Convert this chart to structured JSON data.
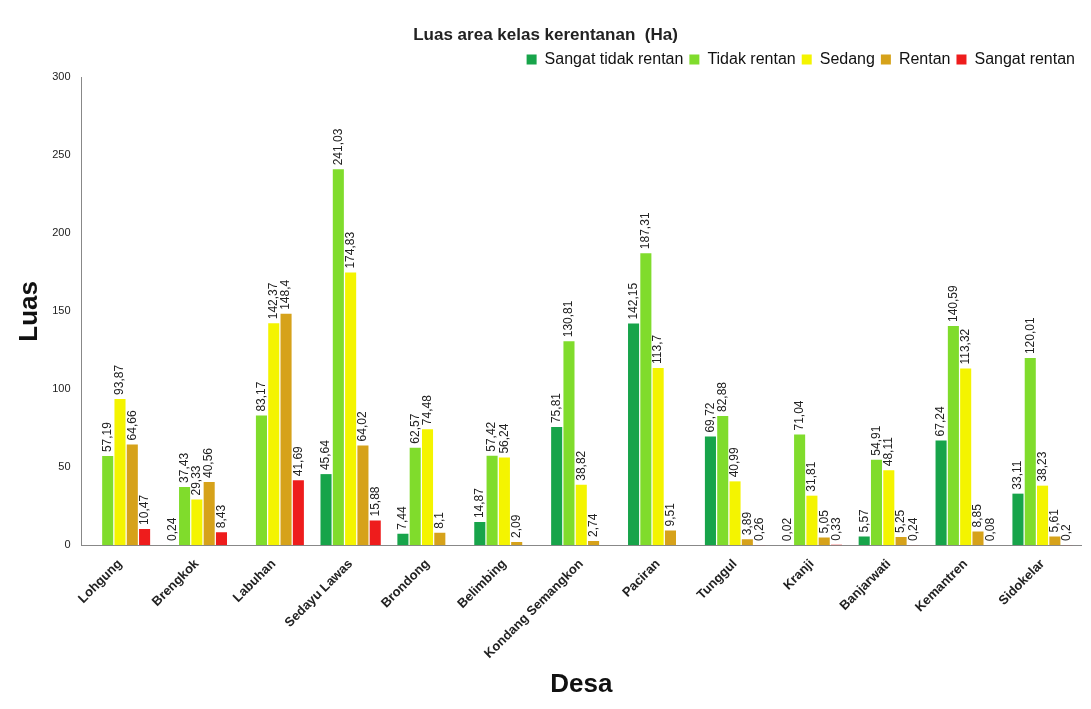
{
  "chart_data": {
    "type": "bar",
    "title": "Luas area kelas kerentanan  (Ha)",
    "xlabel": "Desa",
    "ylabel": "Luas",
    "categories": [
      "Lohgung",
      "Brengkok",
      "Labuhan",
      "Sedayu Lawas",
      "Brondong",
      "Belimbing",
      "Kondang Semangkon",
      "Paciran",
      "Tunggul",
      "Kranji",
      "Banjarwati",
      "Kemantren",
      "Sidokelar"
    ],
    "series": [
      {
        "name": "Sangat tidak rentan",
        "color": "#17a44a",
        "values": [
          null,
          0.24,
          null,
          45.64,
          7.44,
          14.87,
          75.81,
          142.15,
          69.72,
          0.02,
          5.57,
          67.24,
          33.11
        ],
        "value_labels": [
          null,
          "0,24",
          null,
          "45,64",
          "7,44",
          "14,87",
          "75,81",
          "142,15",
          "69,72",
          "0,02",
          "5,57",
          "67,24",
          "33,11"
        ]
      },
      {
        "name": "Tidak rentan",
        "color": "#80dc2c",
        "values": [
          57.19,
          37.43,
          83.17,
          241.03,
          62.57,
          57.42,
          130.81,
          187.31,
          82.88,
          71.04,
          54.91,
          140.59,
          120.01
        ],
        "value_labels": [
          "57,19",
          "37,43",
          "83,17",
          "241,03",
          "62,57",
          "57,42",
          "130,81",
          "187,31",
          "82,88",
          "71,04",
          "54,91",
          "140,59",
          "120,01"
        ]
      },
      {
        "name": "Sedang",
        "color": "#f4f400",
        "values": [
          93.87,
          29.33,
          142.37,
          174.83,
          74.48,
          56.24,
          38.82,
          113.7,
          40.99,
          31.81,
          48.11,
          113.32,
          38.23
        ],
        "value_labels": [
          "93,87",
          "29,33",
          "142,37",
          "174,83",
          "74,48",
          "56,24",
          "38,82",
          "113,7",
          "40,99",
          "31,81",
          "48,11",
          "113,32",
          "38,23"
        ]
      },
      {
        "name": "Rentan",
        "color": "#d6a21a",
        "values": [
          64.66,
          40.56,
          148.4,
          64.02,
          8.1,
          2.09,
          2.74,
          9.51,
          3.89,
          5.05,
          5.25,
          8.85,
          5.61
        ],
        "value_labels": [
          "64,66",
          "40,56",
          "148,4",
          "64,02",
          "8,1",
          "2,09",
          "2,74",
          "9,51",
          "3,89",
          "5,05",
          "5,25",
          "8,85",
          "5,61"
        ]
      },
      {
        "name": "Sangat rentan",
        "color": "#ee1c1c",
        "values": [
          10.47,
          8.43,
          41.69,
          15.88,
          null,
          null,
          null,
          null,
          0.26,
          0.33,
          0.24,
          0.08,
          0.2
        ],
        "value_labels": [
          "10,47",
          "8,43",
          "41,69",
          "15,88",
          null,
          null,
          null,
          null,
          "0,26",
          "0,33",
          "0,24",
          "0,08",
          "0,2"
        ]
      }
    ],
    "ylim": [
      0,
      300
    ],
    "yticks": [
      0,
      50,
      100,
      150,
      200,
      250,
      300
    ],
    "grid": false,
    "legend": "top right"
  }
}
